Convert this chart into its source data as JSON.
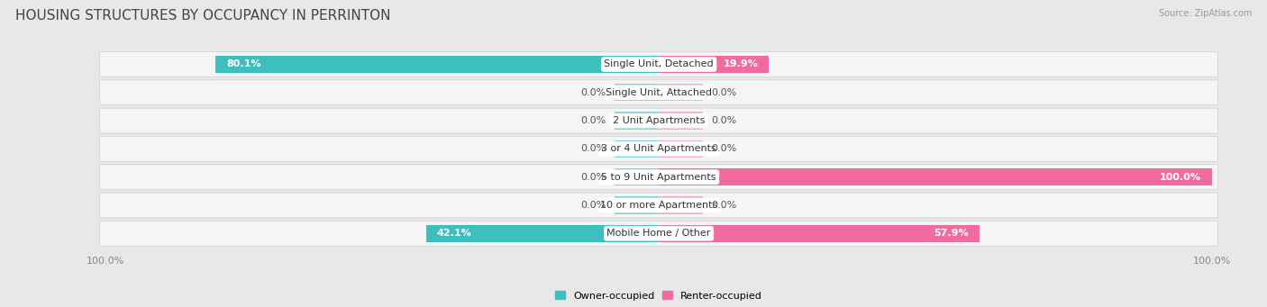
{
  "title": "HOUSING STRUCTURES BY OCCUPANCY IN PERRINTON",
  "source": "Source: ZipAtlas.com",
  "categories": [
    "Single Unit, Detached",
    "Single Unit, Attached",
    "2 Unit Apartments",
    "3 or 4 Unit Apartments",
    "5 to 9 Unit Apartments",
    "10 or more Apartments",
    "Mobile Home / Other"
  ],
  "owner_pct": [
    80.1,
    0.0,
    0.0,
    0.0,
    0.0,
    0.0,
    42.1
  ],
  "renter_pct": [
    19.9,
    0.0,
    0.0,
    0.0,
    100.0,
    0.0,
    57.9
  ],
  "owner_color": "#3DBFBF",
  "owner_color_light": "#7DD5D5",
  "renter_color": "#F06CA0",
  "renter_color_light": "#F5AACC",
  "bg_color": "#E8E8E8",
  "row_bg": "#F5F5F5",
  "title_fontsize": 11,
  "label_fontsize": 8,
  "source_fontsize": 7,
  "axis_label_fontsize": 8,
  "bar_height": 0.62,
  "stub_size": 8.0,
  "xlim": 100
}
